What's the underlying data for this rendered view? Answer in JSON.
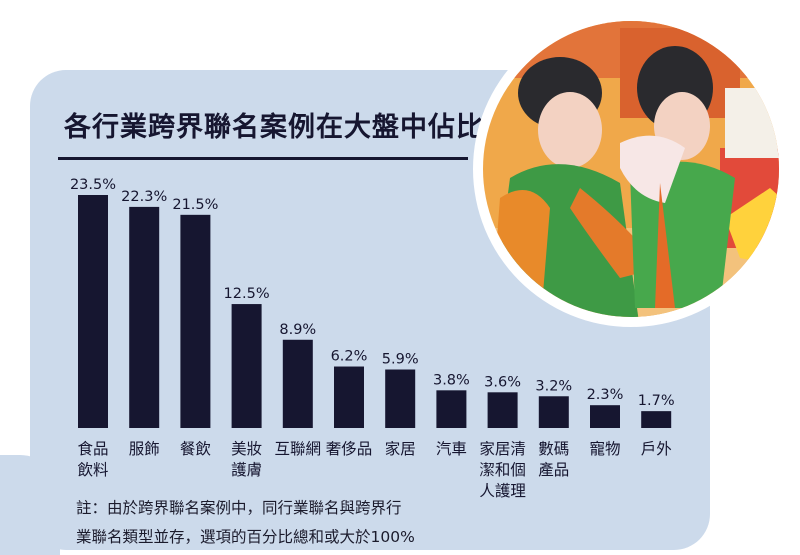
{
  "title": "各行業跨界聯名案例在大盤中佔比",
  "footnote": {
    "line1": "註：由於跨界聯名案例中，同行業聯名與跨界行",
    "line2": "業聯名類型並存，選項的百分比總和或大於100%"
  },
  "colors": {
    "background": "#ccdaeb",
    "bar": "#161630",
    "text": "#161630"
  },
  "chart_data": {
    "type": "bar",
    "title": "各行業跨界聯名案例在大盤中佔比",
    "value_suffix": "%",
    "categories": [
      [
        "食品",
        "飲料"
      ],
      [
        "服飾"
      ],
      [
        "餐飲"
      ],
      [
        "美妝",
        "護膚"
      ],
      [
        "互聯網"
      ],
      [
        "奢侈品"
      ],
      [
        "家居"
      ],
      [
        "汽車"
      ],
      [
        "家居清",
        "潔和個",
        "人護理"
      ],
      [
        "數碼",
        "產品"
      ],
      [
        "寵物"
      ],
      [
        "戶外"
      ]
    ],
    "values": [
      23.5,
      22.3,
      21.5,
      12.5,
      8.9,
      6.2,
      5.9,
      3.8,
      3.6,
      3.2,
      2.3,
      1.7
    ],
    "ylim": [
      0,
      23.5
    ],
    "grid": false,
    "legend": "none"
  }
}
